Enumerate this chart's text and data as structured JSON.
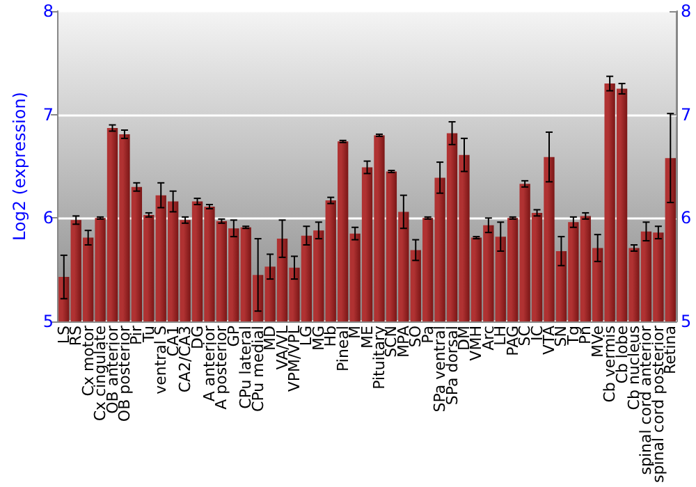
{
  "chart_data": {
    "type": "bar",
    "ylabel": "Log2 (expression)",
    "categories": [
      "LS",
      "RS",
      "Cx motor",
      "Cx cingulate",
      "OB anterior",
      "OB posterior",
      "Pir",
      "Tu",
      "ventral S",
      "CA1",
      "CA2/CA3",
      "DG",
      "A anterior",
      "A posterior",
      "GP",
      "CPu lateral",
      "CPu medial",
      "MD",
      "VA/VL",
      "VPM/VPL",
      "LG",
      "MG",
      "Hb",
      "Pineal",
      "M",
      "ME",
      "Pituitary",
      "SCN",
      "MPA",
      "SO",
      "Pa",
      "SPa ventral",
      "SPa dorsal",
      "DM",
      "VMH",
      "Arc",
      "LH",
      "PAG",
      "SC",
      "IC",
      "VTA",
      "SN",
      "Tg",
      "Pn",
      "MVe",
      "Cb vermis",
      "Cb lobe",
      "Cb nucleus",
      "spinal cord anterior",
      "spinal cord posterior",
      "Retina"
    ],
    "series": [
      {
        "color": "#b03232",
        "values": [
          5.43,
          5.98,
          5.81,
          6.0,
          6.87,
          6.81,
          6.3,
          6.03,
          6.22,
          6.16,
          5.98,
          6.16,
          6.11,
          5.97,
          5.9,
          5.91,
          5.45,
          5.53,
          5.8,
          5.52,
          5.83,
          5.88,
          6.17,
          6.74,
          5.85,
          6.49,
          6.8,
          6.45,
          6.06,
          5.69,
          6.0,
          6.39,
          6.82,
          6.61,
          5.81,
          5.93,
          5.82,
          6.0,
          6.33,
          6.05,
          6.59,
          5.68,
          5.96,
          6.02,
          5.71,
          7.3,
          7.25,
          5.71,
          5.87,
          5.86,
          6.58
        ],
        "errors": [
          0.21,
          0.04,
          0.07,
          0.01,
          0.03,
          0.04,
          0.04,
          0.02,
          0.12,
          0.1,
          0.03,
          0.03,
          0.02,
          0.02,
          0.08,
          0.01,
          0.35,
          0.12,
          0.18,
          0.11,
          0.09,
          0.08,
          0.03,
          0.01,
          0.06,
          0.06,
          0.01,
          0.01,
          0.16,
          0.1,
          0.01,
          0.15,
          0.11,
          0.16,
          0.01,
          0.07,
          0.14,
          0.01,
          0.03,
          0.03,
          0.24,
          0.14,
          0.05,
          0.03,
          0.13,
          0.07,
          0.05,
          0.03,
          0.09,
          0.06,
          0.43
        ]
      }
    ],
    "ylim": [
      5,
      8
    ],
    "yticks": [
      5,
      6,
      7,
      8
    ],
    "y2lim": [
      5,
      8
    ],
    "y2ticks": [
      5,
      6,
      7,
      8
    ],
    "grid": "y"
  }
}
